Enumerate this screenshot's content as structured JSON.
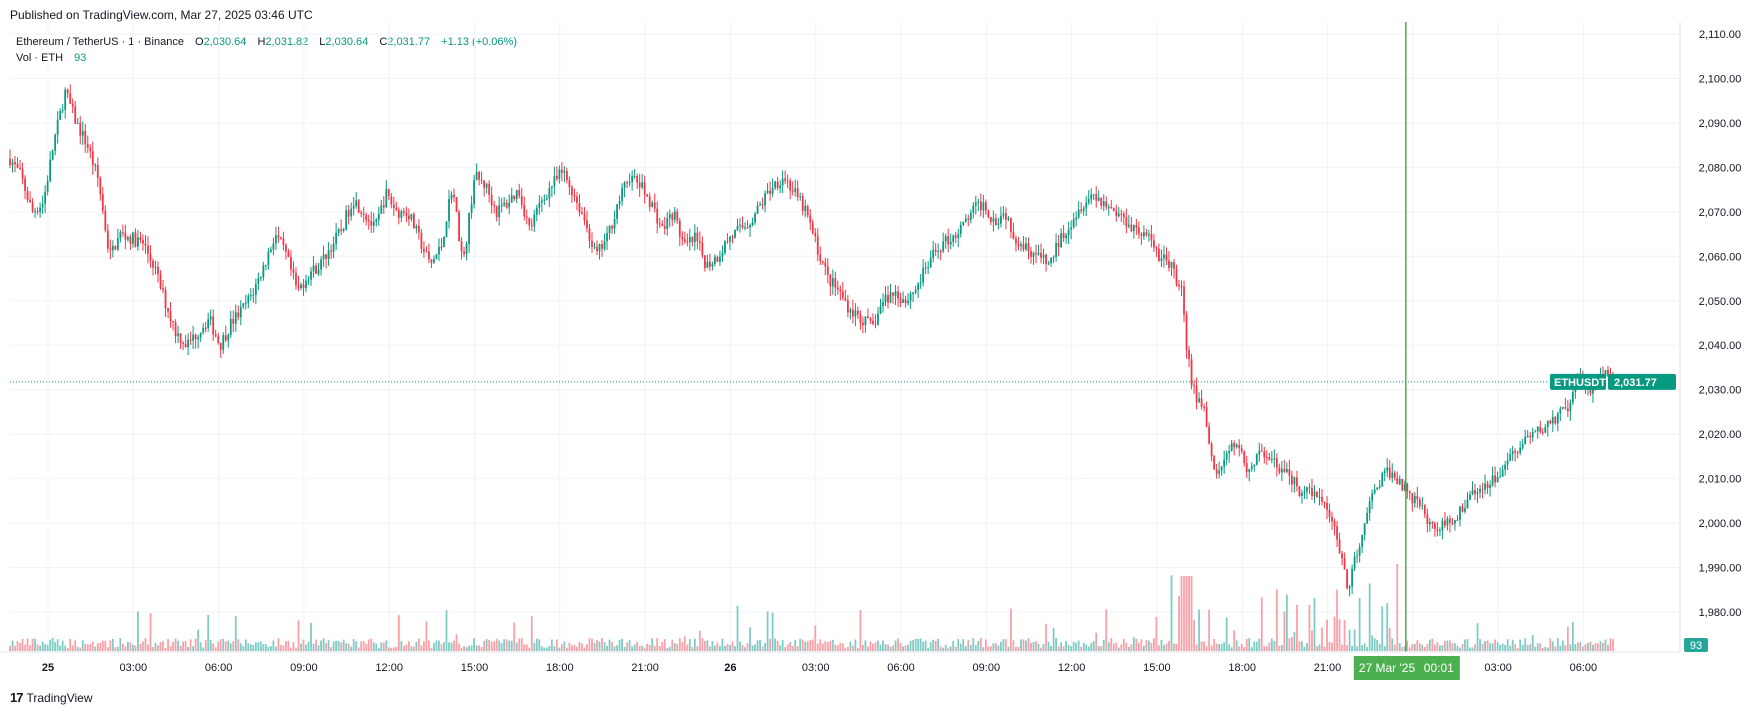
{
  "published": "Published on TradingView.com, Mar 27, 2025 03:46 UTC",
  "legend": {
    "symbol": "Ethereum / TetherUS · 1 · Binance",
    "o_label": "O",
    "o_val": "2,030.64",
    "h_label": "H",
    "h_val": "2,031.82",
    "l_label": "L",
    "l_val": "2,030.64",
    "c_label": "C",
    "c_val": "2,031.77",
    "change": "+1.13 (+0.06%)",
    "vol_label": "Vol · ETH",
    "vol_val": "93"
  },
  "price_tag": {
    "symbol": "ETHUSDT",
    "value": "2,031.77"
  },
  "vol_tag": "93",
  "crosshair_label": {
    "date": "27 Mar '25",
    "time": "00:01"
  },
  "footer": {
    "logo": "17",
    "brand": "TradingView"
  },
  "colors": {
    "up": "#089981",
    "down": "#f23645",
    "up_vol": "#80cbc4",
    "down_vol": "#f7a1a8",
    "crosshair": "#4caf50",
    "grid": "#f0f3fa"
  },
  "chart_data": {
    "type": "candlestick",
    "title": "Ethereum / TetherUS · 1 · Binance",
    "yaxis": {
      "ticks": [
        "2,110.00",
        "2,100.00",
        "2,090.00",
        "2,080.00",
        "2,070.00",
        "2,060.00",
        "2,050.00",
        "2,040.00",
        "2,030.00",
        "2,020.00",
        "2,010.00",
        "2,000.00",
        "1,990.00",
        "1,980.00"
      ],
      "values": [
        2110,
        2100,
        2090,
        2080,
        2070,
        2060,
        2050,
        2040,
        2030,
        2020,
        2010,
        2000,
        1990,
        1980
      ]
    },
    "xaxis": {
      "ticks": [
        "25",
        "03:00",
        "06:00",
        "09:00",
        "12:00",
        "15:00",
        "18:00",
        "21:00",
        "26",
        "03:00",
        "06:00",
        "09:00",
        "12:00",
        "15:00",
        "18:00",
        "21:00",
        "27 Mar '25 00:01",
        "03:00",
        "06:00"
      ],
      "bold": [
        "25",
        "26"
      ]
    },
    "last_price": 2031.77,
    "price_path": [
      [
        0,
        2082
      ],
      [
        0.5,
        2078
      ],
      [
        1,
        2070
      ],
      [
        1.5,
        2072
      ],
      [
        2,
        2086
      ],
      [
        2.5,
        2097
      ],
      [
        3,
        2090
      ],
      [
        3.5,
        2085
      ],
      [
        4,
        2077
      ],
      [
        4.5,
        2060
      ],
      [
        5,
        2065
      ],
      [
        6,
        2063
      ],
      [
        6.5,
        2058
      ],
      [
        7,
        2050
      ],
      [
        7.5,
        2043
      ],
      [
        8,
        2040
      ],
      [
        9,
        2046
      ],
      [
        9.5,
        2040
      ],
      [
        10,
        2045
      ],
      [
        10.5,
        2048
      ],
      [
        11,
        2052
      ],
      [
        11.5,
        2058
      ],
      [
        12,
        2065
      ],
      [
        12.5,
        2060
      ],
      [
        13,
        2052
      ],
      [
        13.5,
        2056
      ],
      [
        14,
        2058
      ],
      [
        15,
        2066
      ],
      [
        15.5,
        2073
      ],
      [
        16,
        2070
      ],
      [
        16.5,
        2066
      ],
      [
        17,
        2074
      ],
      [
        17.5,
        2070
      ],
      [
        18,
        2070
      ],
      [
        18.5,
        2064
      ],
      [
        19,
        2058
      ],
      [
        19.5,
        2062
      ],
      [
        20,
        2076
      ],
      [
        20.5,
        2058
      ],
      [
        21,
        2078
      ],
      [
        21.5,
        2076
      ],
      [
        22,
        2070
      ],
      [
        22.5,
        2072
      ],
      [
        23,
        2075
      ],
      [
        23.5,
        2066
      ],
      [
        24,
        2072
      ],
      [
        24.5,
        2076
      ],
      [
        25,
        2079
      ],
      [
        25.5,
        2074
      ],
      [
        26,
        2068
      ],
      [
        26.5,
        2060
      ],
      [
        27,
        2064
      ],
      [
        27.5,
        2072
      ],
      [
        28,
        2078
      ],
      [
        28.5,
        2076
      ],
      [
        29,
        2072
      ],
      [
        29.5,
        2066
      ],
      [
        30,
        2070
      ],
      [
        30.5,
        2062
      ],
      [
        31,
        2064
      ],
      [
        31.5,
        2058
      ],
      [
        32,
        2060
      ],
      [
        32.5,
        2064
      ],
      [
        33,
        2066
      ],
      [
        33.5,
        2068
      ],
      [
        34,
        2072
      ],
      [
        34.5,
        2076
      ],
      [
        35,
        2078
      ],
      [
        35.5,
        2074
      ],
      [
        36,
        2070
      ],
      [
        36.5,
        2062
      ],
      [
        37,
        2055
      ],
      [
        37.5,
        2052
      ],
      [
        38,
        2048
      ],
      [
        38.5,
        2046
      ],
      [
        39,
        2044
      ],
      [
        39.5,
        2050
      ],
      [
        40,
        2052
      ],
      [
        40.5,
        2050
      ],
      [
        41,
        2053
      ],
      [
        41.5,
        2058
      ],
      [
        42,
        2062
      ],
      [
        42.5,
        2064
      ],
      [
        43,
        2066
      ],
      [
        43.5,
        2070
      ],
      [
        44,
        2072
      ],
      [
        44.5,
        2068
      ],
      [
        45,
        2070
      ],
      [
        45.5,
        2064
      ],
      [
        46,
        2062
      ],
      [
        46.5,
        2060
      ],
      [
        47,
        2058
      ],
      [
        47.5,
        2064
      ],
      [
        48,
        2068
      ],
      [
        48.5,
        2072
      ],
      [
        49,
        2074
      ],
      [
        49.5,
        2072
      ],
      [
        50,
        2070
      ],
      [
        50.5,
        2068
      ],
      [
        51,
        2066
      ],
      [
        51.5,
        2064
      ],
      [
        52,
        2060
      ],
      [
        52.5,
        2058
      ],
      [
        53,
        2052
      ],
      [
        53.2,
        2040
      ],
      [
        53.5,
        2030
      ],
      [
        54,
        2026
      ],
      [
        54.5,
        2010
      ],
      [
        55,
        2015
      ],
      [
        55.5,
        2018
      ],
      [
        56,
        2012
      ],
      [
        56.5,
        2016
      ],
      [
        57,
        2014
      ],
      [
        57.5,
        2012
      ],
      [
        58,
        2010
      ],
      [
        58.5,
        2006
      ],
      [
        59,
        2008
      ],
      [
        59.5,
        2004
      ],
      [
        60,
        1998
      ],
      [
        60.5,
        1985
      ],
      [
        61,
        1995
      ],
      [
        61.5,
        2004
      ],
      [
        62,
        2010
      ],
      [
        62.5,
        2012
      ],
      [
        63,
        2008
      ],
      [
        63.5,
        2005
      ],
      [
        64,
        2002
      ],
      [
        64.5,
        1998
      ],
      [
        65,
        2000
      ],
      [
        65.5,
        2002
      ],
      [
        66,
        2006
      ],
      [
        66.5,
        2008
      ],
      [
        67,
        2010
      ],
      [
        67.5,
        2012
      ],
      [
        68,
        2016
      ],
      [
        68.5,
        2018
      ],
      [
        69,
        2020
      ],
      [
        69.5,
        2022
      ],
      [
        70,
        2024
      ],
      [
        70.5,
        2026
      ],
      [
        71,
        2033
      ],
      [
        71.5,
        2030
      ],
      [
        72,
        2034
      ],
      [
        72.5,
        2031.77
      ]
    ]
  }
}
